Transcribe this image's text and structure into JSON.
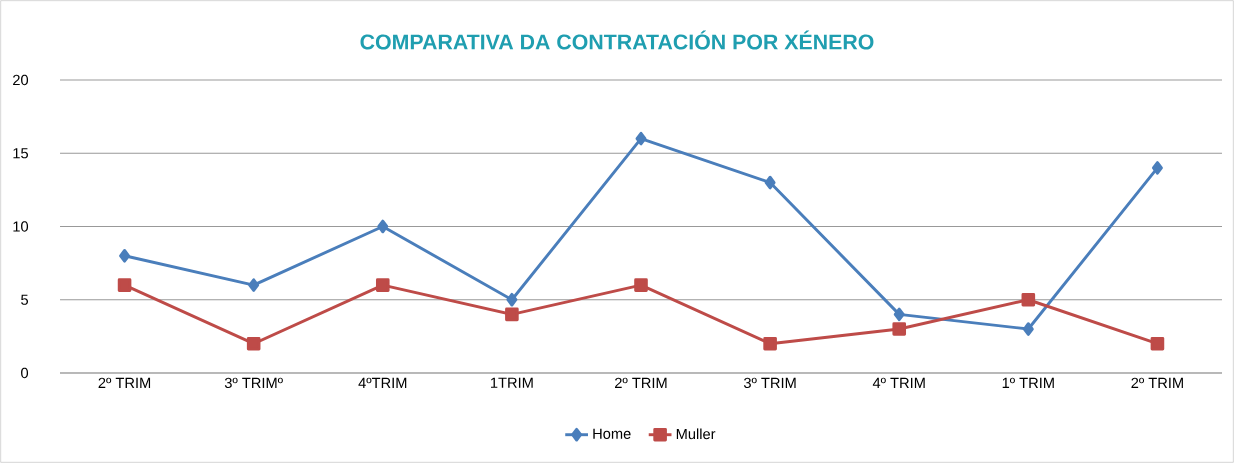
{
  "chart_data": {
    "type": "line",
    "title": "COMPARATIVA DA CONTRATACIÓN POR XÉNERO",
    "categories": [
      "2º TRIM",
      "3º TRIMº",
      "4ºTRIM",
      "1TRIM",
      "2º TRIM",
      "3º TRIM",
      "4º TRIM",
      "1º TRIM",
      "2º TRIM"
    ],
    "series": [
      {
        "name": "Home",
        "color": "#4a7ebb",
        "marker": "diamond",
        "values": [
          8,
          6,
          10,
          5,
          16,
          13,
          4,
          3,
          14
        ]
      },
      {
        "name": "Muller",
        "color": "#be4b48",
        "marker": "square",
        "values": [
          6,
          2,
          6,
          4,
          6,
          2,
          3,
          5,
          2
        ]
      }
    ],
    "ylim": [
      0,
      20
    ],
    "yticks": [
      0,
      5,
      10,
      15,
      20
    ],
    "grid": "y",
    "legend": "bottom"
  }
}
